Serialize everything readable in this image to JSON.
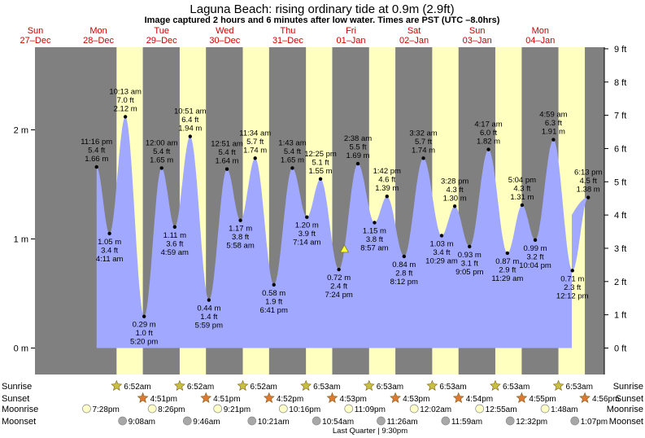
{
  "header": {
    "title": "Laguna Beach: rising  ordinary tide at 0.9m (2.9ft)",
    "subtitle": "Image captured 2 hours and 6 minutes after low water. Times are PST (UTC –8.0hrs)"
  },
  "colors": {
    "night": "#808080",
    "day": "#ffffc0",
    "tide_fill": "#a0a8ff",
    "date_label": "#cc0000",
    "sunrise_star": "#c8c040",
    "sunset_star": "#e07830",
    "moonrise": "#ffffc8",
    "moonset": "#a8a8a8"
  },
  "days": [
    {
      "dow": "Sun",
      "date": "27–Dec"
    },
    {
      "dow": "Mon",
      "date": "28–Dec"
    },
    {
      "dow": "Tue",
      "date": "29–Dec"
    },
    {
      "dow": "Wed",
      "date": "30–Dec"
    },
    {
      "dow": "Thu",
      "date": "31–Dec"
    },
    {
      "dow": "Fri",
      "date": "01–Jan"
    },
    {
      "dow": "Sat",
      "date": "02–Jan"
    },
    {
      "dow": "Sun",
      "date": "03–Jan"
    },
    {
      "dow": "Mon",
      "date": "04–Jan"
    }
  ],
  "chart_data": {
    "type": "area",
    "title": "Laguna Beach: rising  ordinary tide at 0.9m (2.9ft)",
    "left_axis": {
      "unit": "m",
      "ticks": [
        {
          "v": 0,
          "label": "0 m"
        },
        {
          "v": 1,
          "label": "1 m"
        },
        {
          "v": 2,
          "label": "2 m"
        }
      ]
    },
    "right_axis": {
      "unit": "ft",
      "ticks": [
        "0 ft",
        "1 ft",
        "2 ft",
        "3 ft",
        "4 ft",
        "5 ft",
        "6 ft",
        "7 ft",
        "8 ft",
        "9 ft"
      ]
    },
    "ylim_m": [
      -0.3,
      2.8
    ],
    "tides": [
      {
        "t": "27 23:16",
        "time": "11:16 pm",
        "ft": "5.4 ft",
        "m": 1.66,
        "type": "high"
      },
      {
        "t": "28 04:11",
        "time": "4:11 am",
        "ft": "3.4 ft",
        "m": 1.05,
        "type": "low"
      },
      {
        "t": "28 10:13",
        "time": "10:13 am",
        "ft": "7.0 ft",
        "m": 2.12,
        "type": "high"
      },
      {
        "t": "28 17:20",
        "time": "5:20 pm",
        "ft": "1.0 ft",
        "m": 0.29,
        "type": "low"
      },
      {
        "t": "29 00:00",
        "time": "12:00 am",
        "ft": "5.4 ft",
        "m": 1.65,
        "type": "high"
      },
      {
        "t": "29 04:59",
        "time": "4:59 am",
        "ft": "3.6 ft",
        "m": 1.11,
        "type": "low"
      },
      {
        "t": "29 10:51",
        "time": "10:51 am",
        "ft": "6.4 ft",
        "m": 1.94,
        "type": "high"
      },
      {
        "t": "29 17:59",
        "time": "5:59 pm",
        "ft": "1.4 ft",
        "m": 0.44,
        "type": "low"
      },
      {
        "t": "30 00:51",
        "time": "12:51 am",
        "ft": "5.4 ft",
        "m": 1.64,
        "type": "high"
      },
      {
        "t": "30 05:58",
        "time": "5:58 am",
        "ft": "3.8 ft",
        "m": 1.17,
        "type": "low"
      },
      {
        "t": "30 11:34",
        "time": "11:34 am",
        "ft": "5.7 ft",
        "m": 1.74,
        "type": "high"
      },
      {
        "t": "30 18:41",
        "time": "6:41 pm",
        "ft": "1.9 ft",
        "m": 0.58,
        "type": "low"
      },
      {
        "t": "31 01:43",
        "time": "1:43 am",
        "ft": "5.4 ft",
        "m": 1.65,
        "type": "high"
      },
      {
        "t": "31 07:14",
        "time": "7:14 am",
        "ft": "3.9 ft",
        "m": 1.2,
        "type": "low"
      },
      {
        "t": "31 12:25",
        "time": "12:25 pm",
        "ft": "5.1 ft",
        "m": 1.55,
        "type": "high"
      },
      {
        "t": "31 19:24",
        "time": "7:24 pm",
        "ft": "2.4 ft",
        "m": 0.72,
        "type": "low"
      },
      {
        "t": "32 02:38",
        "time": "2:38 am",
        "ft": "5.5 ft",
        "m": 1.69,
        "type": "high"
      },
      {
        "t": "32 08:57",
        "time": "8:57 am",
        "ft": "3.8 ft",
        "m": 1.15,
        "type": "low"
      },
      {
        "t": "32 13:42",
        "time": "1:42 pm",
        "ft": "4.6 ft",
        "m": 1.39,
        "type": "high"
      },
      {
        "t": "32 20:12",
        "time": "8:12 pm",
        "ft": "2.8 ft",
        "m": 0.84,
        "type": "low"
      },
      {
        "t": "33 03:32",
        "time": "3:32 am",
        "ft": "5.7 ft",
        "m": 1.74,
        "type": "high"
      },
      {
        "t": "33 10:29",
        "time": "10:29 am",
        "ft": "3.4 ft",
        "m": 1.03,
        "type": "low"
      },
      {
        "t": "33 15:28",
        "time": "3:28 pm",
        "ft": "4.3 ft",
        "m": 1.3,
        "type": "high"
      },
      {
        "t": "33 21:05",
        "time": "9:05 pm",
        "ft": "3.1 ft",
        "m": 0.93,
        "type": "low"
      },
      {
        "t": "34 04:17",
        "time": "4:17 am",
        "ft": "6.0 ft",
        "m": 1.82,
        "type": "high"
      },
      {
        "t": "34 11:29",
        "time": "11:29 am",
        "ft": "2.9 ft",
        "m": 0.87,
        "type": "low"
      },
      {
        "t": "34 17:04",
        "time": "5:04 pm",
        "ft": "4.3 ft",
        "m": 1.31,
        "type": "high"
      },
      {
        "t": "34 22:04",
        "time": "10:04 pm",
        "ft": "3.2 ft",
        "m": 0.99,
        "type": "low"
      },
      {
        "t": "35 04:59",
        "time": "4:59 am",
        "ft": "6.3 ft",
        "m": 1.91,
        "type": "high"
      },
      {
        "t": "35 12:12",
        "time": "12:12 pm",
        "ft": "2.3 ft",
        "m": 0.71,
        "type": "low"
      },
      {
        "t": "35 18:13",
        "time": "6:13 pm",
        "ft": "4.5 ft",
        "m": 1.38,
        "type": "high"
      }
    ],
    "current": {
      "t": "31 21:30",
      "m": 0.9
    }
  },
  "bottom": {
    "labels": {
      "sunrise": "Sunrise",
      "sunset": "Sunset",
      "moonrise": "Moonrise",
      "moonset": "Moonset"
    },
    "sunrise": [
      {
        "t": "28 06:52",
        "label": "6:52am"
      },
      {
        "t": "29 06:52",
        "label": "6:52am"
      },
      {
        "t": "30 06:52",
        "label": "6:52am"
      },
      {
        "t": "31 06:53",
        "label": "6:53am"
      },
      {
        "t": "32 06:53",
        "label": "6:53am"
      },
      {
        "t": "33 06:53",
        "label": "6:53am"
      },
      {
        "t": "34 06:53",
        "label": "6:53am"
      },
      {
        "t": "35 06:53",
        "label": "6:53am"
      }
    ],
    "sunset": [
      {
        "t": "28 16:51",
        "label": "4:51pm"
      },
      {
        "t": "29 16:51",
        "label": "4:51pm"
      },
      {
        "t": "30 16:52",
        "label": "4:52pm"
      },
      {
        "t": "31 16:53",
        "label": "4:53pm"
      },
      {
        "t": "32 16:53",
        "label": "4:53pm"
      },
      {
        "t": "33 16:54",
        "label": "4:54pm"
      },
      {
        "t": "34 16:55",
        "label": "4:55pm"
      },
      {
        "t": "35 16:56",
        "label": "4:56pm"
      }
    ],
    "moonrise": [
      {
        "t": "27 19:28",
        "label": "7:28pm"
      },
      {
        "t": "28 20:26",
        "label": "8:26pm"
      },
      {
        "t": "29 21:21",
        "label": "9:21pm"
      },
      {
        "t": "30 22:16",
        "label": "10:16pm"
      },
      {
        "t": "31 23:09",
        "label": "11:09pm"
      },
      {
        "t": "33 00:02",
        "label": "12:02am"
      },
      {
        "t": "34 00:55",
        "label": "12:55am"
      },
      {
        "t": "35 01:48",
        "label": "1:48am"
      }
    ],
    "moonset": [
      {
        "t": "28 09:08",
        "label": "9:08am"
      },
      {
        "t": "29 09:46",
        "label": "9:46am"
      },
      {
        "t": "30 10:21",
        "label": "10:21am"
      },
      {
        "t": "31 10:54",
        "label": "10:54am"
      },
      {
        "t": "32 11:26",
        "label": "11:26am"
      },
      {
        "t": "33 11:59",
        "label": "11:59am"
      },
      {
        "t": "34 12:32",
        "label": "12:32pm"
      },
      {
        "t": "35 13:07",
        "label": "1:07pm"
      }
    ],
    "moon_phase": "Last Quarter | 9:30pm"
  }
}
